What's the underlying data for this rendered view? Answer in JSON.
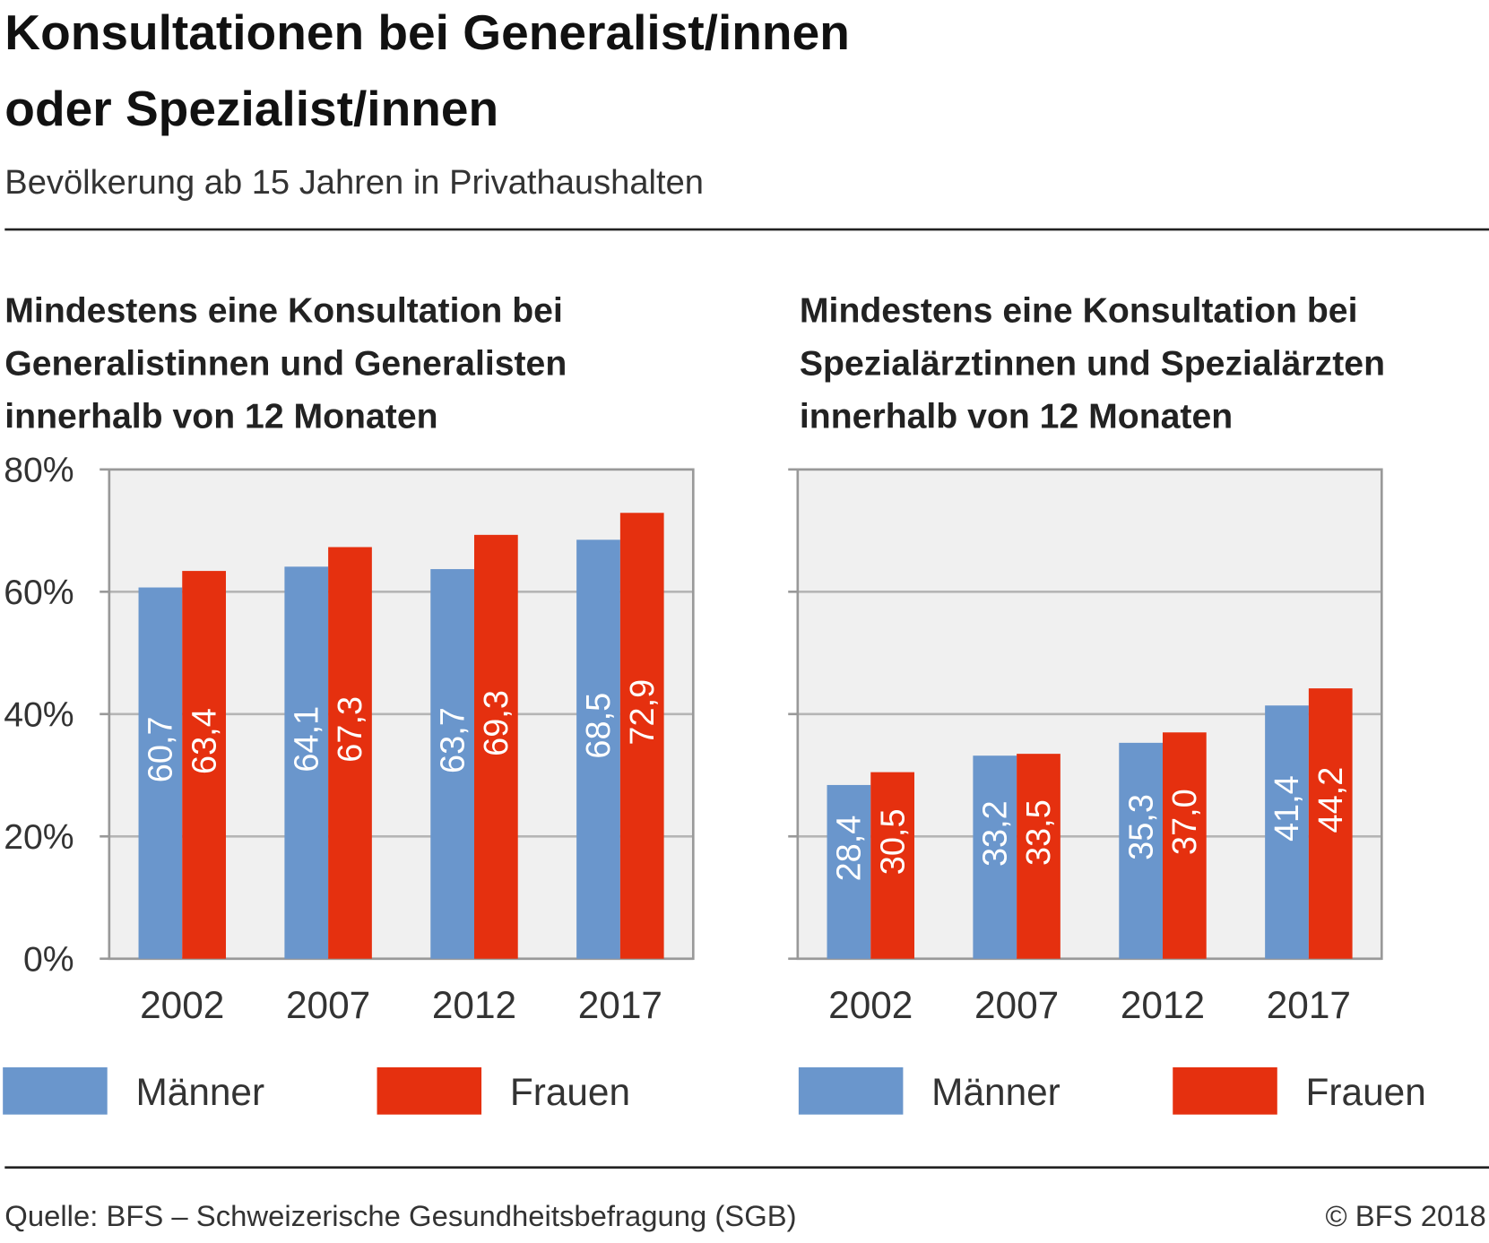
{
  "header": {
    "title": [
      "Konsultationen bei Generalist/innen",
      "oder Spezialist/innen"
    ],
    "subtitle": "Bevölkerung ab 15 Jahren in Privathaushalten"
  },
  "chart_data": [
    {
      "type": "bar",
      "title": [
        "Mindestens eine Konsultation bei",
        "Generalistinnen und Generalisten",
        "innerhalb von 12 Monaten"
      ],
      "categories": [
        "2002",
        "2007",
        "2012",
        "2017"
      ],
      "series": [
        {
          "name": "Männer",
          "color": "#6a96cc",
          "values": [
            60.7,
            64.1,
            63.7,
            68.5
          ],
          "value_labels": [
            "60,7",
            "64,1",
            "63,7",
            "68,5"
          ]
        },
        {
          "name": "Frauen",
          "color": "#e5300f",
          "values": [
            63.4,
            67.3,
            69.3,
            72.9
          ],
          "value_labels": [
            "63,4",
            "67,3",
            "69,3",
            "72,9"
          ]
        }
      ],
      "ylim": [
        0,
        80
      ],
      "yticks": [
        {
          "value": 0,
          "label": "0%"
        },
        {
          "value": 20,
          "label": "20%"
        },
        {
          "value": 40,
          "label": "40%"
        },
        {
          "value": 60,
          "label": "60%"
        },
        {
          "value": 80,
          "label": "80%"
        }
      ],
      "grid": true
    },
    {
      "type": "bar",
      "title": [
        "Mindestens eine Konsultation bei",
        "Spezialärztinnen und Spezialärzten",
        "innerhalb von 12 Monaten"
      ],
      "categories": [
        "2002",
        "2007",
        "2012",
        "2017"
      ],
      "series": [
        {
          "name": "Männer",
          "color": "#6a96cc",
          "values": [
            28.4,
            33.2,
            35.3,
            41.4
          ],
          "value_labels": [
            "28,4",
            "33,2",
            "35,3",
            "41,4"
          ]
        },
        {
          "name": "Frauen",
          "color": "#e5300f",
          "values": [
            30.5,
            33.5,
            37.0,
            44.2
          ],
          "value_labels": [
            "30,5",
            "33,5",
            "37,0",
            "44,2"
          ]
        }
      ],
      "ylim": [
        0,
        80
      ],
      "yticks": [
        0,
        20,
        40,
        60,
        80
      ],
      "grid": true
    }
  ],
  "footer": {
    "source": "Quelle: BFS – Schweizerische Gesundheitsbefragung (SGB)",
    "copyright": "© BFS 2018"
  }
}
